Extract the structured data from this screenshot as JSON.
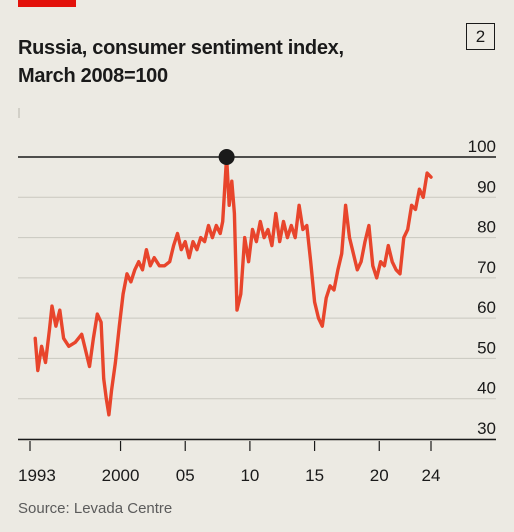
{
  "brand": {
    "accent_color": "#e3120b"
  },
  "header": {
    "title_line1": "Russia, consumer sentiment index,",
    "title_line2": "March 2008=100",
    "chart_number": "2"
  },
  "footer": {
    "source": "Source: Levada Centre"
  },
  "chart_data": {
    "type": "line",
    "title": "Russia, consumer sentiment index, March 2008=100",
    "xlabel": "",
    "ylabel": "",
    "ylim": [
      30,
      100
    ],
    "xlim": [
      1993,
      2024.5
    ],
    "yticks": [
      30,
      40,
      50,
      60,
      70,
      80,
      90,
      100
    ],
    "ytick_labels": [
      "30",
      "40",
      "50",
      "60",
      "70",
      "80",
      "90",
      "100"
    ],
    "xticks": [
      1993,
      2000,
      2005,
      2010,
      2015,
      2020,
      2024
    ],
    "xtick_labels": [
      "1993",
      "2000",
      "05",
      "10",
      "15",
      "20",
      "24"
    ],
    "grid": true,
    "line_color": "#e8452c",
    "reference_line": {
      "y": 100,
      "color": "#1a1a1a"
    },
    "highlight_point": {
      "x": 2008.2,
      "y": 100,
      "color": "#1a1a1a"
    },
    "series": [
      {
        "values": [
          [
            1993.4,
            55
          ],
          [
            1993.6,
            47
          ],
          [
            1993.9,
            53
          ],
          [
            1994.2,
            49
          ],
          [
            1994.5,
            57
          ],
          [
            1994.7,
            63
          ],
          [
            1995.0,
            58
          ],
          [
            1995.3,
            62
          ],
          [
            1995.6,
            55
          ],
          [
            1996.0,
            53
          ],
          [
            1996.5,
            54
          ],
          [
            1997.0,
            56
          ],
          [
            1997.3,
            52
          ],
          [
            1997.6,
            48
          ],
          [
            1997.9,
            55
          ],
          [
            1998.2,
            61
          ],
          [
            1998.5,
            59
          ],
          [
            1998.7,
            45
          ],
          [
            1998.9,
            40
          ],
          [
            1999.1,
            36
          ],
          [
            1999.3,
            42
          ],
          [
            1999.6,
            49
          ],
          [
            1999.9,
            58
          ],
          [
            2000.2,
            66
          ],
          [
            2000.5,
            71
          ],
          [
            2000.8,
            69
          ],
          [
            2001.1,
            72
          ],
          [
            2001.4,
            74
          ],
          [
            2001.7,
            72
          ],
          [
            2002.0,
            77
          ],
          [
            2002.3,
            73
          ],
          [
            2002.6,
            75
          ],
          [
            2003.0,
            73
          ],
          [
            2003.4,
            73
          ],
          [
            2003.8,
            74
          ],
          [
            2004.1,
            78
          ],
          [
            2004.4,
            81
          ],
          [
            2004.7,
            77
          ],
          [
            2005.0,
            79
          ],
          [
            2005.3,
            75
          ],
          [
            2005.6,
            79
          ],
          [
            2005.9,
            77
          ],
          [
            2006.2,
            80
          ],
          [
            2006.5,
            79
          ],
          [
            2006.8,
            83
          ],
          [
            2007.1,
            80
          ],
          [
            2007.4,
            83
          ],
          [
            2007.7,
            81
          ],
          [
            2007.9,
            84
          ],
          [
            2008.2,
            100
          ],
          [
            2008.4,
            88
          ],
          [
            2008.6,
            94
          ],
          [
            2008.8,
            86
          ],
          [
            2009.0,
            62
          ],
          [
            2009.3,
            66
          ],
          [
            2009.6,
            80
          ],
          [
            2009.9,
            74
          ],
          [
            2010.2,
            82
          ],
          [
            2010.5,
            79
          ],
          [
            2010.8,
            84
          ],
          [
            2011.1,
            80
          ],
          [
            2011.4,
            82
          ],
          [
            2011.7,
            78
          ],
          [
            2012.0,
            86
          ],
          [
            2012.3,
            79
          ],
          [
            2012.6,
            84
          ],
          [
            2012.9,
            80
          ],
          [
            2013.2,
            83
          ],
          [
            2013.5,
            80
          ],
          [
            2013.8,
            88
          ],
          [
            2014.1,
            82
          ],
          [
            2014.4,
            83
          ],
          [
            2014.7,
            74
          ],
          [
            2015.0,
            64
          ],
          [
            2015.3,
            60
          ],
          [
            2015.6,
            58
          ],
          [
            2015.9,
            65
          ],
          [
            2016.2,
            68
          ],
          [
            2016.5,
            67
          ],
          [
            2016.8,
            72
          ],
          [
            2017.1,
            76
          ],
          [
            2017.4,
            88
          ],
          [
            2017.7,
            80
          ],
          [
            2018.0,
            76
          ],
          [
            2018.3,
            72
          ],
          [
            2018.6,
            74
          ],
          [
            2018.9,
            79
          ],
          [
            2019.2,
            83
          ],
          [
            2019.5,
            73
          ],
          [
            2019.8,
            70
          ],
          [
            2020.1,
            74
          ],
          [
            2020.4,
            73
          ],
          [
            2020.7,
            78
          ],
          [
            2021.0,
            74
          ],
          [
            2021.3,
            72
          ],
          [
            2021.6,
            71
          ],
          [
            2021.9,
            80
          ],
          [
            2022.2,
            82
          ],
          [
            2022.5,
            88
          ],
          [
            2022.8,
            87
          ],
          [
            2023.1,
            92
          ],
          [
            2023.4,
            90
          ],
          [
            2023.7,
            96
          ],
          [
            2024.0,
            95
          ]
        ]
      }
    ]
  }
}
